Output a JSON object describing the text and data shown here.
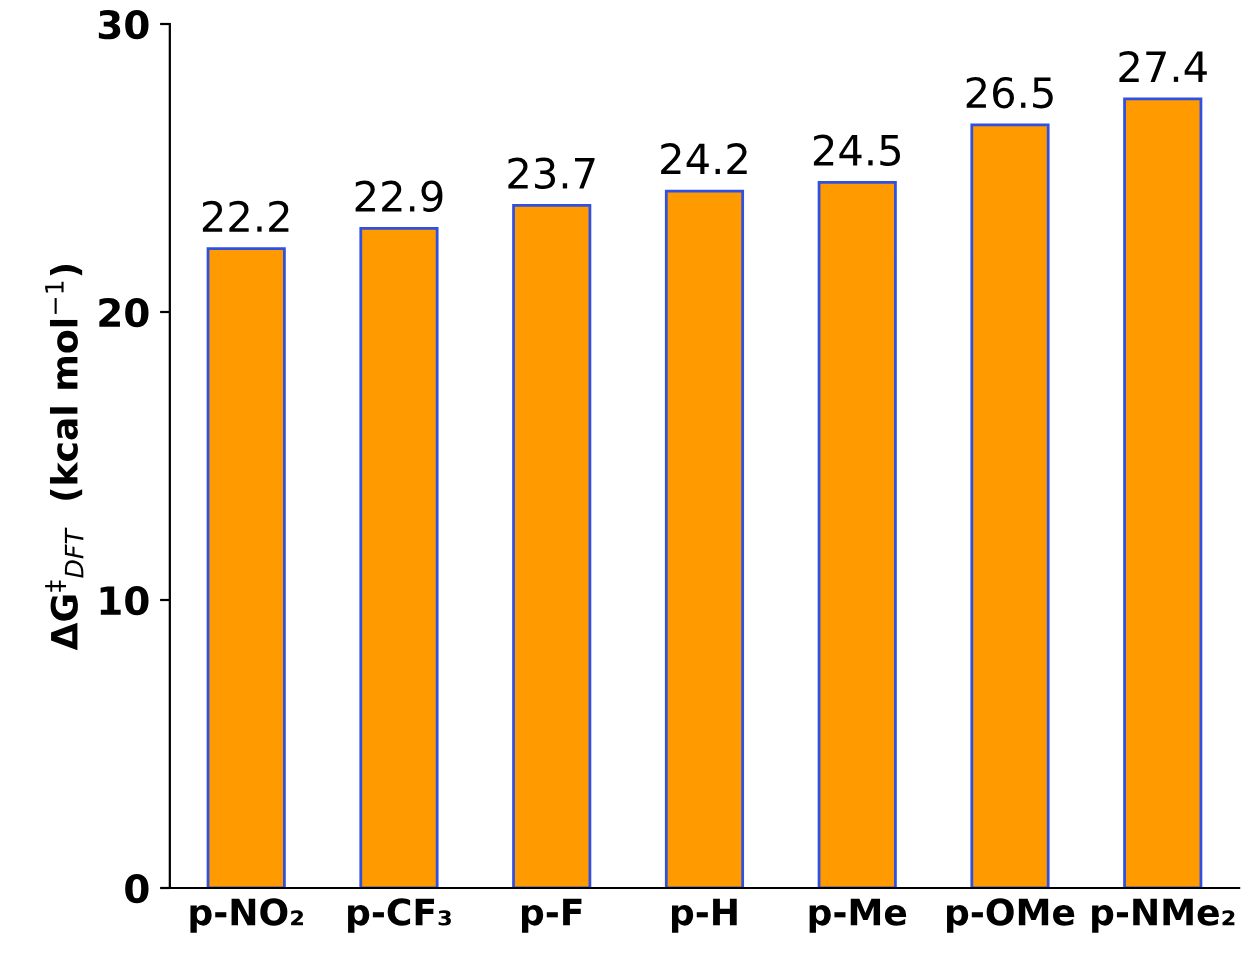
{
  "chart_data": {
    "type": "bar",
    "ylabel": "ΔG$^{‡}$$_{DFT}$  (kcal mol$^{−1}$)",
    "categories": [
      "p-NO₂",
      "p-CF₃",
      "p-F",
      "p-H",
      "p-Me",
      "p-OMe",
      "p-NMe₂"
    ],
    "values": [
      22.2,
      22.9,
      23.7,
      24.2,
      24.5,
      26.5,
      27.4
    ],
    "color": "#ff9a00",
    "ylim": [
      0,
      30
    ],
    "yticks": [
      0,
      10,
      20,
      30
    ],
    "data_labels": true,
    "grid": false,
    "legend": false
  }
}
